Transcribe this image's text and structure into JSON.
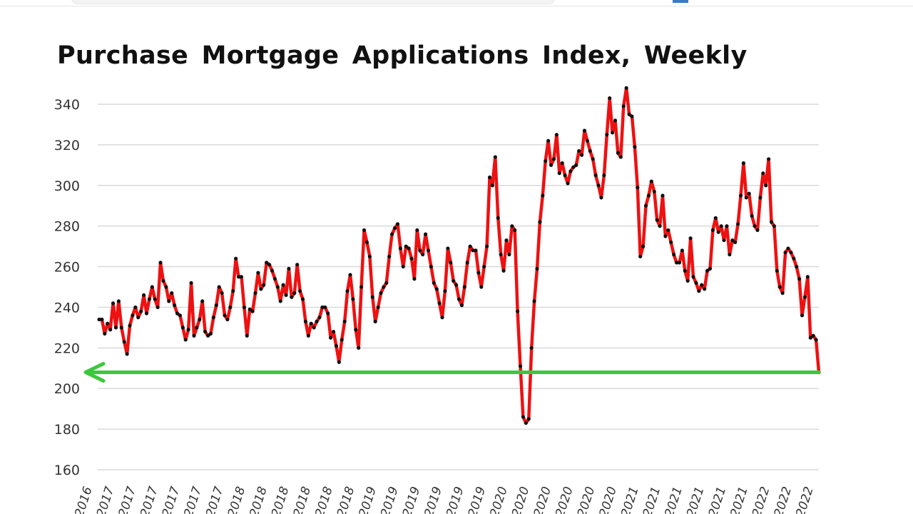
{
  "chart_data": {
    "type": "line",
    "title": "Purchase Mortgage Applications Index, Weekly",
    "xlabel": "",
    "ylabel": "",
    "ylim": [
      160,
      340
    ],
    "yticks": [
      160,
      180,
      200,
      220,
      240,
      260,
      280,
      300,
      320,
      340
    ],
    "grid": true,
    "x_tick_labels": [
      "2016",
      "2017",
      "2017",
      "2017",
      "2017",
      "2017",
      "2017",
      "2018",
      "2018",
      "2018",
      "2018",
      "2018",
      "2018",
      "2019",
      "2019",
      "2019",
      "2019",
      "2019",
      "2019",
      "2020",
      "2020",
      "2020",
      "2020",
      "2020",
      "2020",
      "2021",
      "2021",
      "2021",
      "2021",
      "2021",
      "2021",
      "2022",
      "2022",
      "2022"
    ],
    "series": [
      {
        "color": "#ee1111",
        "marker_color": "#111111",
        "values": [
          234,
          234,
          227,
          232,
          229,
          242,
          230,
          243,
          230,
          223,
          217,
          231,
          236,
          240,
          235,
          238,
          246,
          237,
          244,
          250,
          244,
          240,
          262,
          253,
          250,
          243,
          247,
          241,
          237,
          236,
          230,
          224,
          229,
          252,
          226,
          230,
          234,
          243,
          228,
          226,
          227,
          235,
          241,
          250,
          247,
          236,
          234,
          240,
          248,
          264,
          255,
          255,
          240,
          226,
          239,
          238,
          247,
          257,
          249,
          251,
          262,
          261,
          258,
          254,
          250,
          243,
          251,
          246,
          259,
          245,
          247,
          261,
          248,
          244,
          233,
          226,
          232,
          230,
          233,
          235,
          240,
          240,
          237,
          225,
          228,
          221,
          213,
          224,
          233,
          248,
          256,
          244,
          229,
          220,
          250,
          278,
          272,
          265,
          245,
          233,
          240,
          247,
          250,
          252,
          265,
          276,
          279,
          281,
          269,
          260,
          270,
          269,
          264,
          254,
          278,
          268,
          266,
          276,
          268,
          260,
          252,
          249,
          242,
          235,
          248,
          269,
          262,
          253,
          251,
          244,
          241,
          250,
          262,
          270,
          268,
          268,
          257,
          250,
          260,
          270,
          304,
          300,
          314,
          284,
          266,
          258,
          273,
          266,
          280,
          278,
          238,
          211,
          186,
          183,
          185,
          220,
          243,
          259,
          282,
          295,
          312,
          322,
          310,
          313,
          325,
          306,
          311,
          305,
          301,
          307,
          309,
          310,
          317,
          315,
          327,
          322,
          317,
          313,
          305,
          300,
          294,
          305,
          325,
          343,
          326,
          332,
          316,
          314,
          339,
          348,
          335,
          334,
          319,
          299,
          265,
          270,
          290,
          295,
          302,
          297,
          283,
          280,
          295,
          275,
          278,
          272,
          266,
          262,
          262,
          268,
          258,
          253,
          274,
          255,
          252,
          248,
          251,
          249,
          258,
          259,
          278,
          284,
          277,
          280,
          273,
          280,
          266,
          273,
          272,
          281,
          295,
          311,
          294,
          296,
          285,
          280,
          278,
          294,
          306,
          300,
          313,
          282,
          280,
          258,
          250,
          247,
          267,
          269,
          267,
          264,
          260,
          254,
          236,
          245,
          255,
          225,
          226,
          224,
          208
        ]
      }
    ],
    "annotations": [
      {
        "type": "horizontal-arrow",
        "value": 208,
        "direction": "left",
        "color": "#3cc83c"
      }
    ]
  }
}
